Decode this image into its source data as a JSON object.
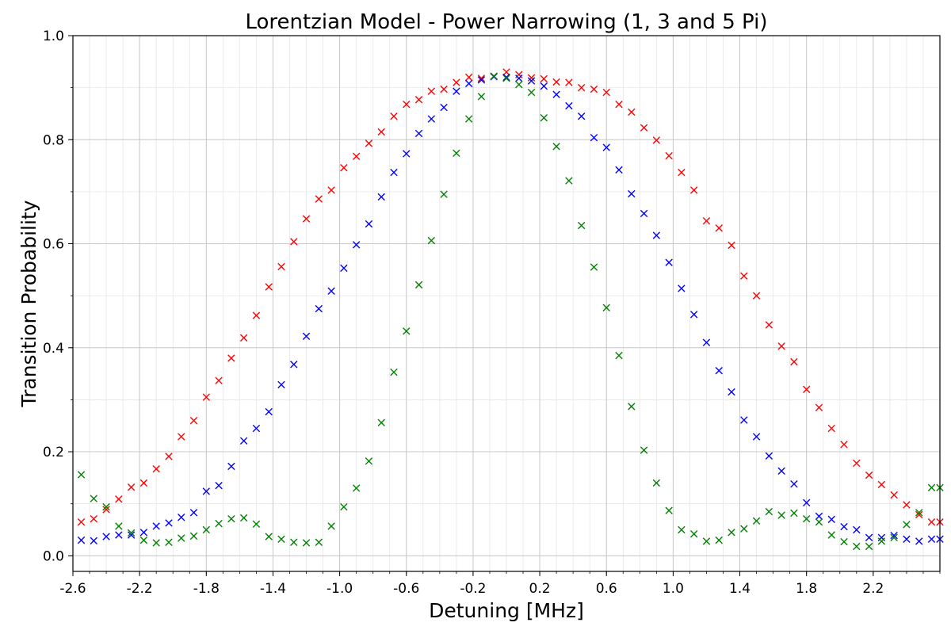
{
  "chart_data": {
    "type": "scatter",
    "title": "Lorentzian Model - Power Narrowing (1, 3 and 5 Pi)",
    "xlabel": "Detuning [MHz]",
    "ylabel": "Transition Probability",
    "xlim": [
      -2.6,
      2.6
    ],
    "ylim": [
      -0.03,
      1.0
    ],
    "x_ticks": [
      -2.6,
      -2.2,
      -1.8,
      -1.4,
      -1.0,
      -0.6,
      -0.2,
      0.2,
      0.6,
      1.0,
      1.4,
      1.8,
      2.2
    ],
    "x_tick_labels": [
      "-2.6",
      "-2.2",
      "-1.8",
      "-1.4",
      "-1.0",
      "-0.6",
      "-0.2",
      "0.2",
      "0.6",
      "1.0",
      "1.4",
      "1.8",
      "2.2"
    ],
    "y_ticks": [
      0.0,
      0.2,
      0.4,
      0.6,
      0.8,
      1.0
    ],
    "y_tick_labels": [
      "0.0",
      "0.2",
      "0.4",
      "0.6",
      "0.8",
      "1.0"
    ],
    "grid": true,
    "minor_grid": true,
    "marker": "x",
    "legend": false,
    "x": [
      -2.55,
      -2.475,
      -2.4,
      -2.325,
      -2.25,
      -2.175,
      -2.1,
      -2.025,
      -1.95,
      -1.875,
      -1.8,
      -1.725,
      -1.65,
      -1.575,
      -1.5,
      -1.425,
      -1.35,
      -1.275,
      -1.2,
      -1.125,
      -1.05,
      -0.975,
      -0.9,
      -0.825,
      -0.75,
      -0.675,
      -0.6,
      -0.525,
      -0.45,
      -0.375,
      -0.3,
      -0.225,
      -0.15,
      -0.075,
      0.0,
      0.075,
      0.15,
      0.225,
      0.3,
      0.375,
      0.45,
      0.525,
      0.6,
      0.675,
      0.75,
      0.825,
      0.9,
      0.975,
      1.05,
      1.125,
      1.2,
      1.275,
      1.35,
      1.425,
      1.5,
      1.575,
      1.65,
      1.725,
      1.8,
      1.875,
      1.95,
      2.025,
      2.1,
      2.175,
      2.25,
      2.325,
      2.4,
      2.475,
      2.55,
      2.6
    ],
    "series": [
      {
        "color": "#ff0000",
        "values": [
          0.065,
          0.071,
          0.089,
          0.109,
          0.132,
          0.14,
          0.167,
          0.191,
          0.229,
          0.26,
          0.305,
          0.337,
          0.38,
          0.419,
          0.462,
          0.517,
          0.556,
          0.604,
          0.648,
          0.686,
          0.703,
          0.746,
          0.768,
          0.793,
          0.815,
          0.845,
          0.868,
          0.877,
          0.893,
          0.897,
          0.91,
          0.92,
          0.918,
          0.922,
          0.93,
          0.925,
          0.919,
          0.917,
          0.911,
          0.91,
          0.9,
          0.897,
          0.891,
          0.868,
          0.853,
          0.823,
          0.799,
          0.769,
          0.737,
          0.703,
          0.644,
          0.63,
          0.597,
          0.538,
          0.5,
          0.444,
          0.403,
          0.373,
          0.32,
          0.285,
          0.245,
          0.214,
          0.178,
          0.155,
          0.137,
          0.117,
          0.098,
          0.079,
          0.065,
          0.065
        ]
      },
      {
        "color": "#0000ff",
        "values": [
          0.03,
          0.029,
          0.037,
          0.04,
          0.04,
          0.045,
          0.057,
          0.063,
          0.074,
          0.083,
          0.124,
          0.135,
          0.172,
          0.221,
          0.245,
          0.277,
          0.329,
          0.368,
          0.422,
          0.475,
          0.509,
          0.553,
          0.598,
          0.638,
          0.69,
          0.737,
          0.773,
          0.812,
          0.84,
          0.862,
          0.893,
          0.908,
          0.915,
          0.921,
          0.92,
          0.918,
          0.913,
          0.903,
          0.887,
          0.865,
          0.845,
          0.804,
          0.785,
          0.742,
          0.696,
          0.658,
          0.616,
          0.564,
          0.514,
          0.464,
          0.41,
          0.356,
          0.315,
          0.261,
          0.229,
          0.192,
          0.163,
          0.138,
          0.102,
          0.076,
          0.07,
          0.056,
          0.05,
          0.035,
          0.035,
          0.039,
          0.032,
          0.028,
          0.032,
          0.032
        ]
      },
      {
        "color": "#008000",
        "values": [
          0.156,
          0.11,
          0.094,
          0.057,
          0.044,
          0.03,
          0.025,
          0.026,
          0.034,
          0.038,
          0.05,
          0.062,
          0.071,
          0.073,
          0.061,
          0.037,
          0.032,
          0.026,
          0.025,
          0.026,
          0.057,
          0.094,
          0.13,
          0.182,
          0.256,
          0.353,
          0.432,
          0.521,
          0.606,
          0.695,
          0.774,
          0.84,
          0.883,
          0.922,
          0.918,
          0.906,
          0.891,
          0.842,
          0.787,
          0.721,
          0.635,
          0.555,
          0.477,
          0.385,
          0.287,
          0.203,
          0.14,
          0.087,
          0.05,
          0.042,
          0.028,
          0.03,
          0.045,
          0.052,
          0.067,
          0.085,
          0.078,
          0.082,
          0.071,
          0.065,
          0.04,
          0.027,
          0.018,
          0.018,
          0.028,
          0.035,
          0.06,
          0.083,
          0.131,
          0.131
        ]
      }
    ]
  }
}
